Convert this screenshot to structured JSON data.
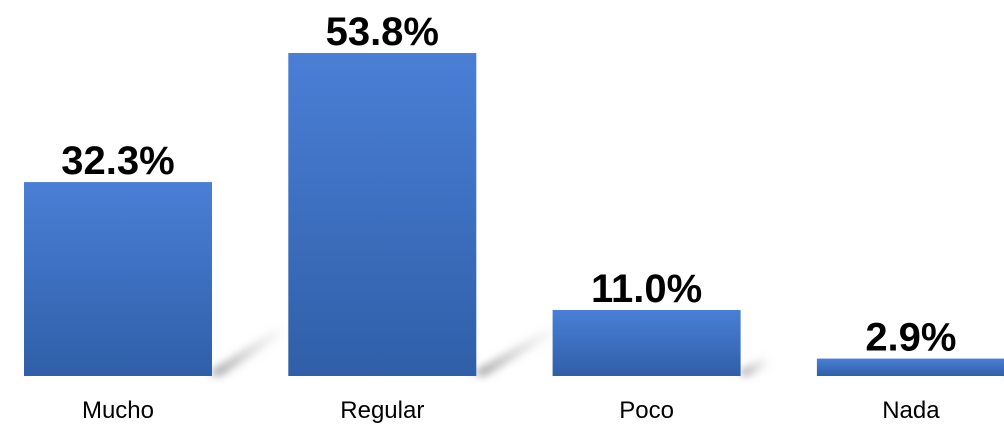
{
  "colors": {
    "bar_top": "#4a7fd6",
    "bar_bottom": "#2f5fa8",
    "shadow": "#9b9b9b",
    "background": "#ffffff"
  },
  "chart_data": {
    "type": "bar",
    "categories": [
      "Mucho",
      "Regular",
      "Poco",
      "Nada"
    ],
    "values": [
      32.3,
      53.8,
      11.0,
      2.9
    ],
    "labels": [
      "32.3%",
      "53.8%",
      "11.0%",
      "2.9%"
    ],
    "ylim": [
      0,
      60
    ],
    "grid": false,
    "legend": "none",
    "title": "",
    "xlabel": "",
    "ylabel": ""
  }
}
